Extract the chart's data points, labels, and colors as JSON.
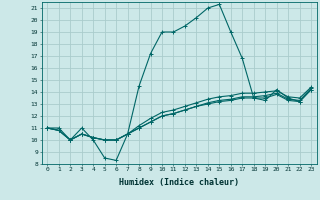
{
  "xlabel": "Humidex (Indice chaleur)",
  "ylabel": "",
  "bg_color": "#cce8e8",
  "grid_color": "#aacccc",
  "line_color": "#006666",
  "xlim": [
    -0.5,
    23.5
  ],
  "ylim": [
    8,
    21.5
  ],
  "yticks": [
    8,
    9,
    10,
    11,
    12,
    13,
    14,
    15,
    16,
    17,
    18,
    19,
    20,
    21
  ],
  "xticks": [
    0,
    1,
    2,
    3,
    4,
    5,
    6,
    7,
    8,
    9,
    10,
    11,
    12,
    13,
    14,
    15,
    16,
    17,
    18,
    19,
    20,
    21,
    22,
    23
  ],
  "series": [
    [
      11,
      11,
      10,
      11,
      10,
      8.5,
      8.3,
      10.5,
      14.5,
      17.2,
      19,
      19,
      19.5,
      20.2,
      21,
      21.3,
      19,
      16.8,
      13.5,
      13.3,
      14.2,
      13.5,
      13.2,
      14.2
    ],
    [
      11,
      10.8,
      10,
      10.5,
      10.2,
      10,
      10,
      10.5,
      11,
      11.5,
      12,
      12.2,
      12.5,
      12.8,
      13,
      13.2,
      13.3,
      13.5,
      13.5,
      13.5,
      13.8,
      13.3,
      13.2,
      14.2
    ],
    [
      11,
      10.8,
      10,
      10.5,
      10.2,
      10,
      10,
      10.5,
      11,
      11.5,
      12,
      12.2,
      12.5,
      12.8,
      13.1,
      13.3,
      13.4,
      13.6,
      13.6,
      13.7,
      13.9,
      13.4,
      13.3,
      14.3
    ],
    [
      11,
      10.8,
      10,
      10.5,
      10.2,
      10,
      10,
      10.5,
      11.2,
      11.8,
      12.3,
      12.5,
      12.8,
      13.1,
      13.4,
      13.6,
      13.7,
      13.9,
      13.9,
      14.0,
      14.1,
      13.6,
      13.5,
      14.4
    ]
  ],
  "marker": "+",
  "markersize": 3,
  "linewidth": 0.8,
  "tick_fontsize": 4.5,
  "xlabel_fontsize": 6.0
}
